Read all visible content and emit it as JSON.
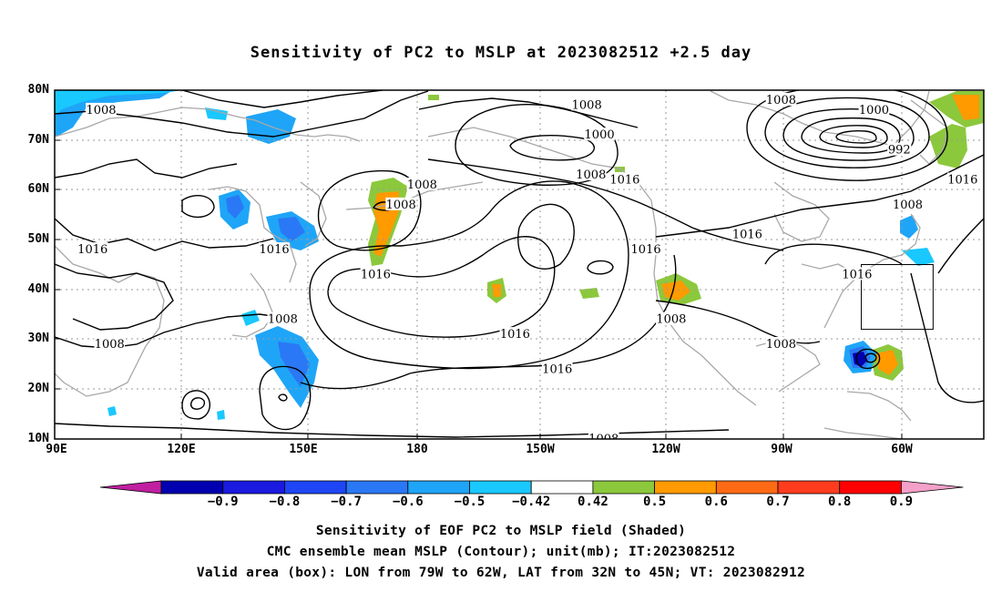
{
  "title": "Sensitivity of PC2 to MSLP at 2023082512 +2.5 day",
  "map": {
    "lon_range_deg_east": [
      90,
      310
    ],
    "lat_range": [
      10,
      80
    ],
    "lat_labels": [
      "80N",
      "70N",
      "60N",
      "50N",
      "40N",
      "30N",
      "20N",
      "10N"
    ],
    "lon_labels": [
      "90E",
      "120E",
      "150E",
      "180",
      "150W",
      "120W",
      "90W",
      "60W"
    ],
    "contour_labels": [
      {
        "text": "1008",
        "lon": 101,
        "lat": 76
      },
      {
        "text": "1008",
        "lon": 172,
        "lat": 57
      },
      {
        "text": "1008",
        "lon": 177,
        "lat": 61
      },
      {
        "text": "1008",
        "lon": 216,
        "lat": 77
      },
      {
        "text": "1008",
        "lon": 217,
        "lat": 63
      },
      {
        "text": "1008",
        "lon": 144,
        "lat": 34
      },
      {
        "text": "1008",
        "lon": 103,
        "lat": 29
      },
      {
        "text": "1008",
        "lon": 262,
        "lat": 78
      },
      {
        "text": "1008",
        "lon": 292,
        "lat": 57
      },
      {
        "text": "1008",
        "lon": 236,
        "lat": 34
      },
      {
        "text": "1008",
        "lon": 262,
        "lat": 29
      },
      {
        "text": "1008",
        "lon": 220,
        "lat": 10
      },
      {
        "text": "1000",
        "lon": 219,
        "lat": 71
      },
      {
        "text": "1000",
        "lon": 284,
        "lat": 76
      },
      {
        "text": "992",
        "lon": 290,
        "lat": 68
      },
      {
        "text": "1016",
        "lon": 225,
        "lat": 62
      },
      {
        "text": "1016",
        "lon": 254,
        "lat": 51
      },
      {
        "text": "1016",
        "lon": 230,
        "lat": 48
      },
      {
        "text": "1016",
        "lon": 280,
        "lat": 43
      },
      {
        "text": "1016",
        "lon": 305,
        "lat": 62
      },
      {
        "text": "1016",
        "lon": 99,
        "lat": 48
      },
      {
        "text": "1016",
        "lon": 142,
        "lat": 48
      },
      {
        "text": "1016",
        "lon": 166,
        "lat": 43
      },
      {
        "text": "1016",
        "lon": 199,
        "lat": 31
      },
      {
        "text": "1016",
        "lon": 209,
        "lat": 24
      }
    ],
    "valid_box": {
      "lon": [
        281,
        298
      ],
      "lat": [
        32,
        45
      ]
    }
  },
  "colorbar": {
    "labels": [
      "−0.9",
      "−0.8",
      "−0.7",
      "−0.6",
      "−0.5",
      "−0.42",
      "0.42",
      "0.5",
      "0.6",
      "0.7",
      "0.8",
      "0.9"
    ],
    "low_arrow_color": "#c01fa0",
    "colors": [
      "#0000b0",
      "#1a1ae0",
      "#1e46f5",
      "#2a78f5",
      "#1fa5f7",
      "#19c8ff",
      "#ffffff",
      "#8cc83c",
      "#ff9a00",
      "#ff6a14",
      "#ff3c1e",
      "#ff0000"
    ],
    "high_arrow_color": "#f5a0c8"
  },
  "captions": {
    "line1": "Sensitivity of EOF PC2 to MSLP field (Shaded)",
    "line2": "CMC ensemble mean MSLP (Contour); unit(mb); IT:2023082512",
    "line3": "Valid area (box): LON from 79W to 62W, LAT from 32N to 45N; VT: 2023082912"
  },
  "colors": {
    "frame": "#000000",
    "grid": "#9a9a9a",
    "coast": "#a8a8a8",
    "contour": "#000000",
    "shade_blue": "#1fa5f7",
    "shade_light_blue": "#19c8ff",
    "shade_mid_blue": "#2a78f5",
    "shade_dark_blue": "#0000b0",
    "shade_green": "#8cc83c",
    "shade_orange": "#ff9a00"
  }
}
